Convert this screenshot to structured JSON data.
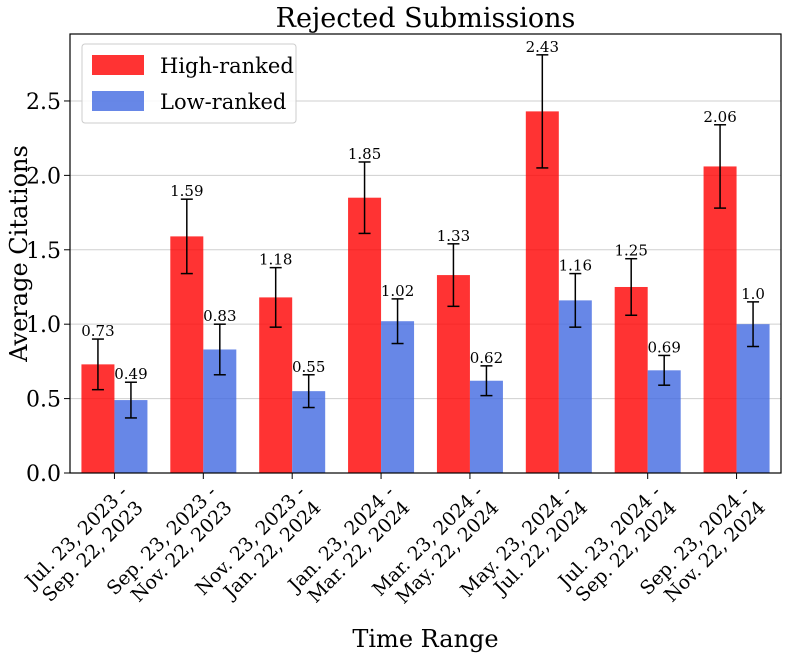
{
  "chart_data": {
    "type": "bar",
    "title": "Rejected Submissions",
    "xlabel": "Time Range",
    "ylabel": "Average Citations",
    "ylim": [
      0,
      2.95
    ],
    "yticks": [
      "0.0",
      "0.5",
      "1.0",
      "1.5",
      "2.0",
      "2.5"
    ],
    "grid": "horizontal",
    "legend_position": "top-left",
    "categories": [
      [
        "Jul. 23, 2023 -",
        "Sep. 22, 2023"
      ],
      [
        "Sep. 23, 2023 -",
        "Nov. 22, 2023"
      ],
      [
        "Nov. 23, 2023 -",
        "Jan. 22, 2024"
      ],
      [
        "Jan. 23, 2024 -",
        "Mar. 22, 2024"
      ],
      [
        "Mar. 23, 2024 -",
        "May. 22, 2024"
      ],
      [
        "May. 23, 2024 -",
        "Jul. 22, 2024"
      ],
      [
        "Jul. 23, 2024 -",
        "Sep. 22, 2024"
      ],
      [
        "Sep. 23, 2024 -",
        "Nov. 22, 2024"
      ]
    ],
    "series": [
      {
        "name": "High-ranked",
        "color": "#ff0000",
        "values": [
          0.73,
          1.59,
          1.18,
          1.85,
          1.33,
          2.43,
          1.25,
          2.06
        ],
        "labels": [
          "0.73",
          "1.59",
          "1.18",
          "1.85",
          "1.33",
          "2.43",
          "1.25",
          "2.06"
        ],
        "errors": [
          0.17,
          0.25,
          0.2,
          0.24,
          0.21,
          0.38,
          0.19,
          0.28
        ]
      },
      {
        "name": "Low-ranked",
        "color": "#4169e1",
        "values": [
          0.49,
          0.83,
          0.55,
          1.02,
          0.62,
          1.16,
          0.69,
          1.0
        ],
        "labels": [
          "0.49",
          "0.83",
          "0.55",
          "1.02",
          "0.62",
          "1.16",
          "0.69",
          "1.0"
        ],
        "errors": [
          0.12,
          0.17,
          0.11,
          0.15,
          0.1,
          0.18,
          0.1,
          0.15
        ]
      }
    ]
  }
}
